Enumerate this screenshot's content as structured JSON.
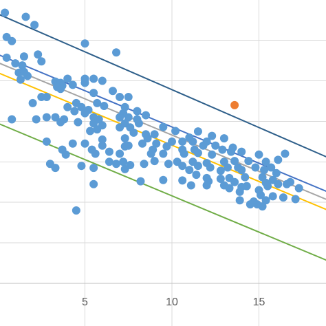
{
  "chart_data": {
    "type": "scatter",
    "title": "",
    "xlabel": "",
    "ylabel": "",
    "grid": true,
    "xlim": [
      0,
      19
    ],
    "ylim": [
      0,
      7
    ],
    "x_ticks": [
      5,
      10,
      15
    ],
    "x_tick_labels": [
      "5",
      "10",
      "15"
    ],
    "y_tick_values": [
      1,
      2,
      3,
      4,
      5,
      6,
      7
    ],
    "series": [
      {
        "color": "#5b9bd5",
        "points": [
          [
            0.4,
            6.68
          ],
          [
            1.6,
            6.58
          ],
          [
            2.1,
            6.38
          ],
          [
            0.5,
            6.08
          ],
          [
            0.8,
            5.98
          ],
          [
            5.0,
            5.92
          ],
          [
            6.8,
            5.7
          ],
          [
            0.5,
            5.57
          ],
          [
            1.5,
            5.6
          ],
          [
            2.3,
            5.65
          ],
          [
            2.5,
            5.48
          ],
          [
            1.0,
            5.43
          ],
          [
            1.4,
            5.38
          ],
          [
            1.2,
            5.2
          ],
          [
            1.5,
            5.22
          ],
          [
            1.7,
            5.12
          ],
          [
            1.3,
            5.03
          ],
          [
            4.0,
            5.05
          ],
          [
            5.0,
            5.05
          ],
          [
            5.5,
            5.05
          ],
          [
            6.0,
            5.0
          ],
          [
            5.0,
            4.95
          ],
          [
            3.3,
            4.98
          ],
          [
            3.6,
            4.95
          ],
          [
            3.7,
            4.88
          ],
          [
            4.3,
            4.9
          ],
          [
            3.4,
            4.85
          ],
          [
            3.6,
            4.8
          ],
          [
            6.6,
            4.75
          ],
          [
            5.5,
            4.7
          ],
          [
            2.5,
            4.6
          ],
          [
            2.8,
            4.6
          ],
          [
            7.0,
            4.6
          ],
          [
            7.5,
            4.6
          ],
          [
            2.0,
            4.45
          ],
          [
            4.5,
            4.45
          ],
          [
            5.7,
            4.45
          ],
          [
            6.1,
            4.38
          ],
          [
            4.0,
            4.35
          ],
          [
            4.8,
            4.35
          ],
          [
            4.4,
            4.25
          ],
          [
            5.2,
            4.28
          ],
          [
            7.3,
            4.35
          ],
          [
            8.0,
            4.25
          ],
          [
            7.2,
            4.2
          ],
          [
            5.0,
            4.2
          ],
          [
            0.8,
            4.05
          ],
          [
            2.2,
            4.05
          ],
          [
            2.8,
            4.1
          ],
          [
            3.3,
            4.1
          ],
          [
            3.8,
            4.05
          ],
          [
            5.5,
            4.1
          ],
          [
            5.8,
            4.05
          ],
          [
            7.0,
            4.1
          ],
          [
            7.5,
            4.1
          ],
          [
            8.0,
            4.05
          ],
          [
            8.5,
            4.15
          ],
          [
            3.6,
            3.98
          ],
          [
            4.6,
            3.98
          ],
          [
            5.5,
            3.95
          ],
          [
            6.0,
            3.9
          ],
          [
            7.3,
            3.95
          ],
          [
            8.1,
            3.95
          ],
          [
            7.0,
            3.85
          ],
          [
            7.6,
            3.85
          ],
          [
            5.7,
            3.8
          ],
          [
            5.3,
            3.76
          ],
          [
            9.5,
            3.86
          ],
          [
            10.2,
            3.76
          ],
          [
            11.5,
            3.75
          ],
          [
            8.5,
            3.68
          ],
          [
            9.0,
            3.68
          ],
          [
            7.8,
            3.72
          ],
          [
            11.0,
            3.6
          ],
          [
            12.3,
            3.64
          ],
          [
            13.0,
            3.58
          ],
          [
            2.8,
            3.5
          ],
          [
            4.3,
            3.45
          ],
          [
            5.0,
            3.45
          ],
          [
            6.0,
            3.4
          ],
          [
            7.5,
            3.4
          ],
          [
            8.3,
            3.45
          ],
          [
            9.1,
            3.45
          ],
          [
            10.0,
            3.5
          ],
          [
            10.6,
            3.5
          ],
          [
            11.2,
            3.5
          ],
          [
            12.0,
            3.5
          ],
          [
            3.7,
            3.3
          ],
          [
            5.4,
            3.3
          ],
          [
            7.3,
            3.38
          ],
          [
            9.7,
            3.38
          ],
          [
            10.6,
            3.3
          ],
          [
            11.3,
            3.3
          ],
          [
            11.8,
            3.4
          ],
          [
            12.5,
            3.4
          ],
          [
            12.9,
            3.3
          ],
          [
            13.5,
            3.35
          ],
          [
            8.9,
            3.3
          ],
          [
            9.5,
            3.2
          ],
          [
            3.9,
            3.18
          ],
          [
            5.6,
            3.2
          ],
          [
            7.0,
            3.2
          ],
          [
            8.8,
            3.2
          ],
          [
            10.7,
            3.2
          ],
          [
            11.5,
            3.22
          ],
          [
            12.3,
            3.18
          ],
          [
            13.4,
            3.25
          ],
          [
            14.0,
            3.25
          ],
          [
            15.0,
            3.18
          ],
          [
            16.5,
            3.2
          ],
          [
            6.4,
            3.0
          ],
          [
            7.2,
            3.0
          ],
          [
            9.0,
            3.02
          ],
          [
            10.3,
            3.0
          ],
          [
            11.2,
            3.0
          ],
          [
            12.0,
            2.97
          ],
          [
            13.0,
            3.0
          ],
          [
            13.6,
            3.02
          ],
          [
            14.4,
            3.02
          ],
          [
            15.4,
            3.0
          ],
          [
            16.1,
            3.05
          ],
          [
            6.8,
            2.95
          ],
          [
            7.6,
            2.92
          ],
          [
            8.4,
            2.95
          ],
          [
            9.8,
            2.95
          ],
          [
            10.6,
            2.9
          ],
          [
            11.5,
            2.9
          ],
          [
            12.2,
            2.86
          ],
          [
            13.2,
            2.86
          ],
          [
            13.8,
            2.86
          ],
          [
            14.8,
            2.86
          ],
          [
            15.7,
            2.86
          ],
          [
            5.5,
            2.85
          ],
          [
            7.3,
            2.82
          ],
          [
            11.0,
            2.8
          ],
          [
            12.8,
            2.78
          ],
          [
            14.0,
            2.8
          ],
          [
            15.3,
            2.8
          ],
          [
            16.0,
            2.72
          ],
          [
            11.4,
            2.68
          ],
          [
            12.0,
            2.6
          ],
          [
            12.8,
            2.58
          ],
          [
            13.3,
            2.6
          ],
          [
            14.2,
            2.62
          ],
          [
            15.2,
            2.62
          ],
          [
            15.8,
            2.55
          ],
          [
            16.8,
            2.5
          ],
          [
            9.5,
            2.55
          ],
          [
            8.2,
            2.52
          ],
          [
            10.6,
            2.54
          ],
          [
            12.1,
            2.52
          ],
          [
            13.6,
            2.5
          ],
          [
            15.4,
            2.48
          ],
          [
            16.1,
            2.45
          ],
          [
            16.6,
            2.45
          ],
          [
            17.3,
            2.35
          ],
          [
            5.5,
            2.45
          ],
          [
            11.1,
            2.42
          ],
          [
            12.0,
            2.42
          ],
          [
            13.0,
            2.42
          ],
          [
            14.3,
            2.4
          ],
          [
            15.5,
            2.4
          ],
          [
            13.3,
            2.35
          ],
          [
            14.0,
            2.38
          ],
          [
            15.0,
            2.3
          ],
          [
            13.9,
            2.26
          ],
          [
            15.1,
            2.18
          ],
          [
            15.8,
            2.15
          ],
          [
            16.4,
            2.12
          ],
          [
            17.1,
            2.08
          ],
          [
            15.4,
            2.05
          ],
          [
            14.7,
            2.02
          ],
          [
            13.9,
            2.05
          ],
          [
            14.5,
            1.95
          ],
          [
            15.2,
            1.9
          ],
          [
            3.0,
            2.95
          ],
          [
            3.3,
            2.85
          ],
          [
            4.8,
            2.9
          ],
          [
            4.5,
            1.8
          ],
          [
            6.4,
            3.25
          ],
          [
            6.0,
            3.55
          ],
          [
            7.3,
            3.58
          ],
          [
            8.6,
            3.58
          ],
          [
            14.9,
            1.95
          ]
        ]
      },
      {
        "color": "#ed7d31",
        "points": [
          [
            13.6,
            4.4
          ]
        ]
      }
    ],
    "lines": [
      {
        "color": "#2e5f8a",
        "points": [
          [
            0,
            6.65
          ],
          [
            19,
            3.1
          ]
        ]
      },
      {
        "color": "#4472c4",
        "points": [
          [
            0,
            5.65
          ],
          [
            19,
            2.25
          ]
        ]
      },
      {
        "color": "#a5a5a5",
        "points": [
          [
            0,
            5.45
          ],
          [
            19,
            2.05
          ]
        ]
      },
      {
        "color": "#ffc000",
        "points": [
          [
            0,
            5.2
          ],
          [
            19,
            1.8
          ]
        ]
      },
      {
        "color": "#70ad47",
        "points": [
          [
            0,
            3.95
          ],
          [
            19,
            0.55
          ]
        ]
      }
    ]
  }
}
